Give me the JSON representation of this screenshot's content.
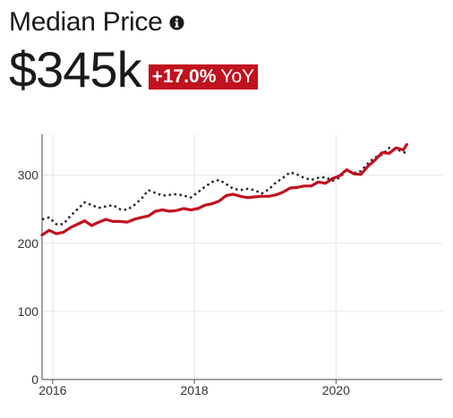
{
  "header": {
    "title": "Median Price",
    "value": "$345k",
    "change": "+17.0%",
    "change_suffix": "YoY"
  },
  "colors": {
    "series_primary": "#c1121f",
    "series_secondary": "#222222",
    "badge_background": "#c1121f",
    "gridline": "#e6e6e6"
  },
  "chart_data": {
    "type": "line",
    "title": "Median Price",
    "xlabel": "",
    "ylabel": "",
    "xlim": [
      2015.85,
      2021.5
    ],
    "ylim": [
      0,
      360
    ],
    "y_ticks": [
      0,
      100,
      200,
      300
    ],
    "x_ticks": [
      2016,
      2018,
      2020
    ],
    "grid": true,
    "legend": "none",
    "series": [
      {
        "style": "solid",
        "color": "#c1121f",
        "x": [
          2015.85,
          2015.95,
          2016.05,
          2016.15,
          2016.25,
          2016.35,
          2016.45,
          2016.55,
          2016.65,
          2016.75,
          2016.85,
          2016.95,
          2017.05,
          2017.15,
          2017.25,
          2017.35,
          2017.45,
          2017.55,
          2017.65,
          2017.75,
          2017.85,
          2017.95,
          2018.05,
          2018.15,
          2018.25,
          2018.35,
          2018.45,
          2018.55,
          2018.65,
          2018.75,
          2018.85,
          2018.95,
          2019.05,
          2019.15,
          2019.25,
          2019.35,
          2019.45,
          2019.55,
          2019.65,
          2019.75,
          2019.85,
          2019.95,
          2020.05,
          2020.15,
          2020.25,
          2020.35,
          2020.45,
          2020.55,
          2020.65,
          2020.75,
          2020.85,
          2020.95,
          2021.0
        ],
        "y": [
          212,
          219,
          214,
          216,
          223,
          228,
          233,
          226,
          231,
          235,
          232,
          232,
          231,
          235,
          238,
          240,
          247,
          249,
          247,
          248,
          251,
          249,
          251,
          256,
          258,
          262,
          270,
          272,
          269,
          267,
          268,
          269,
          269,
          271,
          275,
          281,
          282,
          284,
          284,
          290,
          288,
          295,
          299,
          308,
          302,
          301,
          313,
          322,
          333,
          332,
          340,
          337,
          345
        ]
      },
      {
        "style": "dotted",
        "color": "#222222",
        "x": [
          2015.85,
          2015.95,
          2016.05,
          2016.15,
          2016.25,
          2016.35,
          2016.45,
          2016.55,
          2016.65,
          2016.75,
          2016.85,
          2016.95,
          2017.05,
          2017.15,
          2017.25,
          2017.35,
          2017.45,
          2017.55,
          2017.65,
          2017.75,
          2017.85,
          2017.95,
          2018.05,
          2018.15,
          2018.25,
          2018.35,
          2018.45,
          2018.55,
          2018.65,
          2018.75,
          2018.85,
          2018.95,
          2019.05,
          2019.15,
          2019.25,
          2019.35,
          2019.45,
          2019.55,
          2019.65,
          2019.75,
          2019.85,
          2019.95,
          2020.05,
          2020.15,
          2020.25,
          2020.35,
          2020.45,
          2020.55,
          2020.65,
          2020.75,
          2020.85,
          2020.95,
          2021.0
        ],
        "y": [
          235,
          238,
          228,
          228,
          240,
          250,
          260,
          256,
          252,
          254,
          256,
          250,
          249,
          256,
          265,
          278,
          274,
          270,
          271,
          272,
          270,
          267,
          275,
          283,
          290,
          293,
          287,
          280,
          278,
          280,
          278,
          273,
          279,
          289,
          296,
          304,
          301,
          296,
          293,
          296,
          297,
          292,
          296,
          308,
          303,
          306,
          317,
          326,
          330,
          340,
          338,
          334,
          332
        ]
      }
    ]
  }
}
